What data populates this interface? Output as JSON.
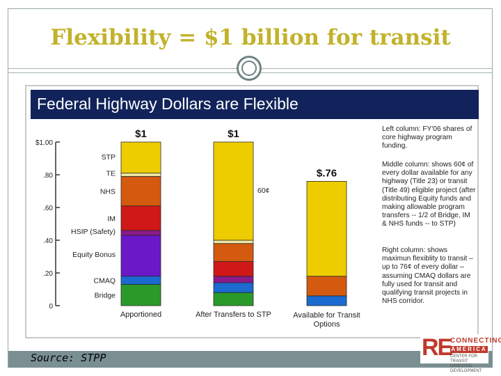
{
  "slide": {
    "title": "Flexibility = $1 billion for transit",
    "source": "Source: STPP"
  },
  "logo": {
    "re": "RE",
    "connecting": "CONNECTING",
    "america": "AMERICA",
    "sub": "CENTER FOR TRANSIT ORIENTED DEVELOPMENT"
  },
  "notes": {
    "left": "Left column: FY'06 shares of core highway program funding.",
    "middle": "Middle column: shows 60¢ of every dollar available for any highway (Title 23) or transit (Title 49) eligible project (after distributing Equity funds and making allowable program transfers -- 1/2 of Bridge, IM & NHS funds -- to STP)",
    "right": "Right column: shows maximun flexiblity to transit – up to 76¢ of every dollar – assuming CMAQ dollars are fully used for transit and qualifying transit projects in NHS corridor."
  },
  "colors": {
    "STP": "#eecd00",
    "TE": "#f0e8a0",
    "NHS": "#d45a10",
    "IM": "#d01818",
    "HSIP": "#8a1a8a",
    "Equity": "#6a18c8",
    "CMAQ": "#1a6ad0",
    "Bridge": "#2a9a2a",
    "header_bg": "#11235a",
    "title": "#c2b22a"
  },
  "chart_data": {
    "type": "bar",
    "stacked": true,
    "title": "Federal Highway Dollars are Flexible",
    "xlabel": "",
    "ylabel": "",
    "ylim": [
      0,
      1.0
    ],
    "yticks": [
      {
        "value": 0,
        "label": "0"
      },
      {
        "value": 0.2,
        "label": ".20"
      },
      {
        "value": 0.4,
        "label": ".40"
      },
      {
        "value": 0.6,
        "label": ".60"
      },
      {
        "value": 0.8,
        "label": ".80"
      },
      {
        "value": 1.0,
        "label": "$1.00"
      }
    ],
    "categories": [
      "Apportioned",
      "After Transfers to STP",
      "Available for Transit Options"
    ],
    "totals": [
      "$1",
      "$1",
      "$.76"
    ],
    "segment_labels": [
      "STP",
      "TE",
      "NHS",
      "IM",
      "HSIP (Safety)",
      "Equity Bonus",
      "CMAQ",
      "Bridge"
    ],
    "series": [
      {
        "name": "Bridge",
        "values": [
          0.13,
          0.08,
          0.0
        ]
      },
      {
        "name": "CMAQ",
        "values": [
          0.05,
          0.06,
          0.06
        ]
      },
      {
        "name": "Equity Bonus",
        "values": [
          0.25,
          0.0,
          0.0
        ]
      },
      {
        "name": "HSIP (Safety)",
        "values": [
          0.03,
          0.04,
          0.0
        ]
      },
      {
        "name": "IM",
        "values": [
          0.15,
          0.09,
          0.0
        ]
      },
      {
        "name": "NHS",
        "values": [
          0.18,
          0.11,
          0.12
        ]
      },
      {
        "name": "TE",
        "values": [
          0.02,
          0.02,
          0.0
        ]
      },
      {
        "name": "STP",
        "values": [
          0.19,
          0.6,
          0.58
        ]
      }
    ],
    "annotations": [
      {
        "text": "60¢",
        "category": "After Transfers to STP"
      }
    ]
  }
}
